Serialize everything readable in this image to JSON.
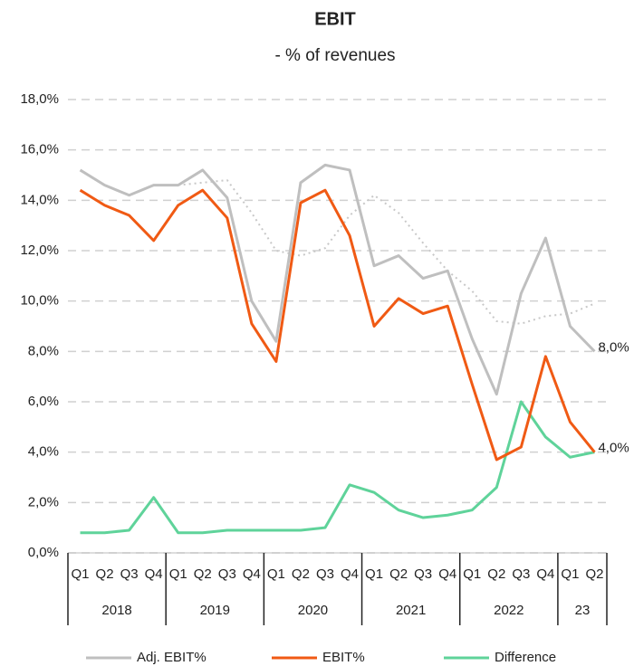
{
  "chart_data": {
    "type": "line",
    "title": "EBIT",
    "subtitle": "- % of revenues",
    "categories": [
      "Q1",
      "Q2",
      "Q3",
      "Q4",
      "Q1",
      "Q2",
      "Q3",
      "Q4",
      "Q1",
      "Q2",
      "Q3",
      "Q4",
      "Q1",
      "Q2",
      "Q3",
      "Q4",
      "Q1",
      "Q2",
      "Q3",
      "Q4",
      "Q1",
      "Q2"
    ],
    "groups": [
      "2018",
      "2019",
      "2020",
      "2021",
      "2022",
      "23"
    ],
    "group_sizes": [
      4,
      4,
      4,
      4,
      4,
      2
    ],
    "series": [
      {
        "name": "Adj. EBIT%",
        "color": "#bfbfbf",
        "width": 3,
        "values": [
          15.2,
          14.6,
          14.2,
          14.6,
          14.6,
          15.2,
          14.1,
          10.0,
          8.4,
          14.7,
          15.4,
          15.2,
          11.4,
          11.8,
          10.9,
          11.2,
          8.5,
          6.3,
          10.3,
          12.5,
          9.0,
          8.0
        ],
        "value_labels": [
          null,
          null,
          null,
          null,
          null,
          null,
          null,
          null,
          null,
          null,
          null,
          null,
          null,
          null,
          null,
          null,
          null,
          null,
          null,
          null,
          null,
          "8,0%"
        ]
      },
      {
        "name": "EBIT%",
        "color": "#f05a14",
        "width": 3,
        "values": [
          14.4,
          13.8,
          13.4,
          12.4,
          13.8,
          14.4,
          13.3,
          9.1,
          7.6,
          13.9,
          14.4,
          12.6,
          9.0,
          10.1,
          9.5,
          9.8,
          6.7,
          3.7,
          4.2,
          7.8,
          5.2,
          4.0
        ],
        "value_labels": [
          null,
          null,
          null,
          null,
          null,
          null,
          null,
          null,
          null,
          null,
          null,
          null,
          null,
          null,
          null,
          null,
          null,
          null,
          null,
          null,
          null,
          "4,0%"
        ]
      },
      {
        "name": "Difference",
        "color": "#5fd39a",
        "width": 3,
        "values": [
          0.8,
          0.8,
          0.9,
          2.2,
          0.8,
          0.8,
          0.9,
          0.9,
          0.9,
          0.9,
          1.0,
          2.7,
          2.4,
          1.7,
          1.4,
          1.5,
          1.7,
          2.6,
          6.0,
          4.6,
          3.8,
          4.0
        ]
      },
      {
        "color": "#c8c8c8",
        "width": 2,
        "dotted": true,
        "values": [
          null,
          null,
          null,
          null,
          14.6,
          14.7,
          14.8,
          13.5,
          12.0,
          11.8,
          12.1,
          13.4,
          14.2,
          13.5,
          12.3,
          11.2,
          10.4,
          9.2,
          9.1,
          9.4,
          9.5,
          9.9
        ]
      }
    ],
    "ylim": [
      0,
      18
    ],
    "yticks": [
      {
        "value": 0,
        "label": "0,0%"
      },
      {
        "value": 2,
        "label": "2,0%"
      },
      {
        "value": 4,
        "label": "4,0%"
      },
      {
        "value": 6,
        "label": "6,0%"
      },
      {
        "value": 8,
        "label": "8,0%"
      },
      {
        "value": 10,
        "label": "10,0%"
      },
      {
        "value": 12,
        "label": "12,0%"
      },
      {
        "value": 14,
        "label": "14,0%"
      },
      {
        "value": 16,
        "label": "16,0%"
      },
      {
        "value": 18,
        "label": "18,0%"
      }
    ],
    "grid": true
  }
}
